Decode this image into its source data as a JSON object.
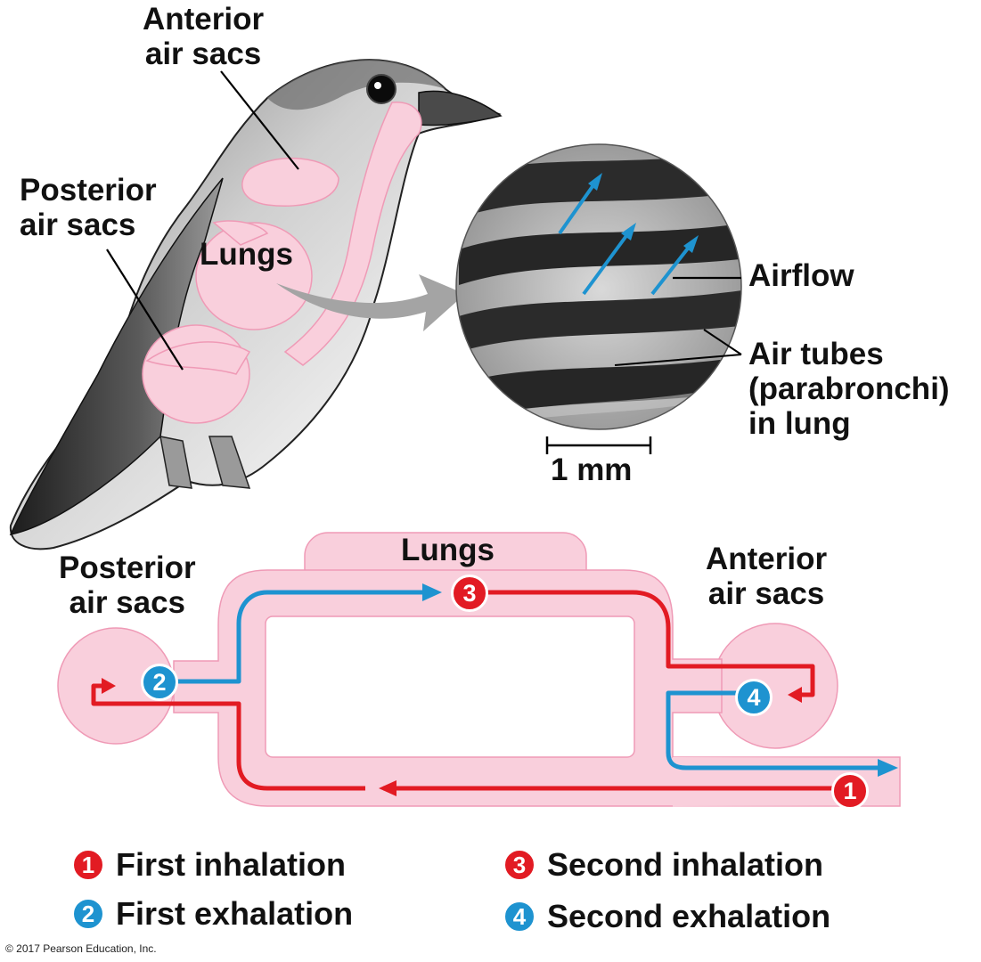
{
  "top": {
    "anterior_air_sacs": [
      "Anterior",
      "air sacs"
    ],
    "posterior_air_sacs": [
      "Posterior",
      "air sacs"
    ],
    "lungs": "Lungs",
    "airflow": "Airflow",
    "air_tubes": [
      "Air tubes",
      "(parabronchi)",
      "in lung"
    ],
    "scale_bar": "1 mm"
  },
  "bottom": {
    "posterior_air_sacs": [
      "Posterior",
      "air sacs"
    ],
    "lungs": "Lungs",
    "anterior_air_sacs": [
      "Anterior",
      "air sacs"
    ]
  },
  "markers": [
    "1",
    "2",
    "3",
    "4"
  ],
  "legend": [
    {
      "num": "1",
      "label": "First inhalation",
      "color": "red"
    },
    {
      "num": "2",
      "label": "First exhalation",
      "color": "blue"
    },
    {
      "num": "3",
      "label": "Second inhalation",
      "color": "red"
    },
    {
      "num": "4",
      "label": "Second exhalation",
      "color": "blue"
    }
  ],
  "colors": {
    "pink": "#f9cfdc",
    "pink_edge": "#ef9ab6",
    "red": "#e21b23",
    "blue": "#1e93d0"
  },
  "copyright": "© 2017 Pearson Education, Inc."
}
